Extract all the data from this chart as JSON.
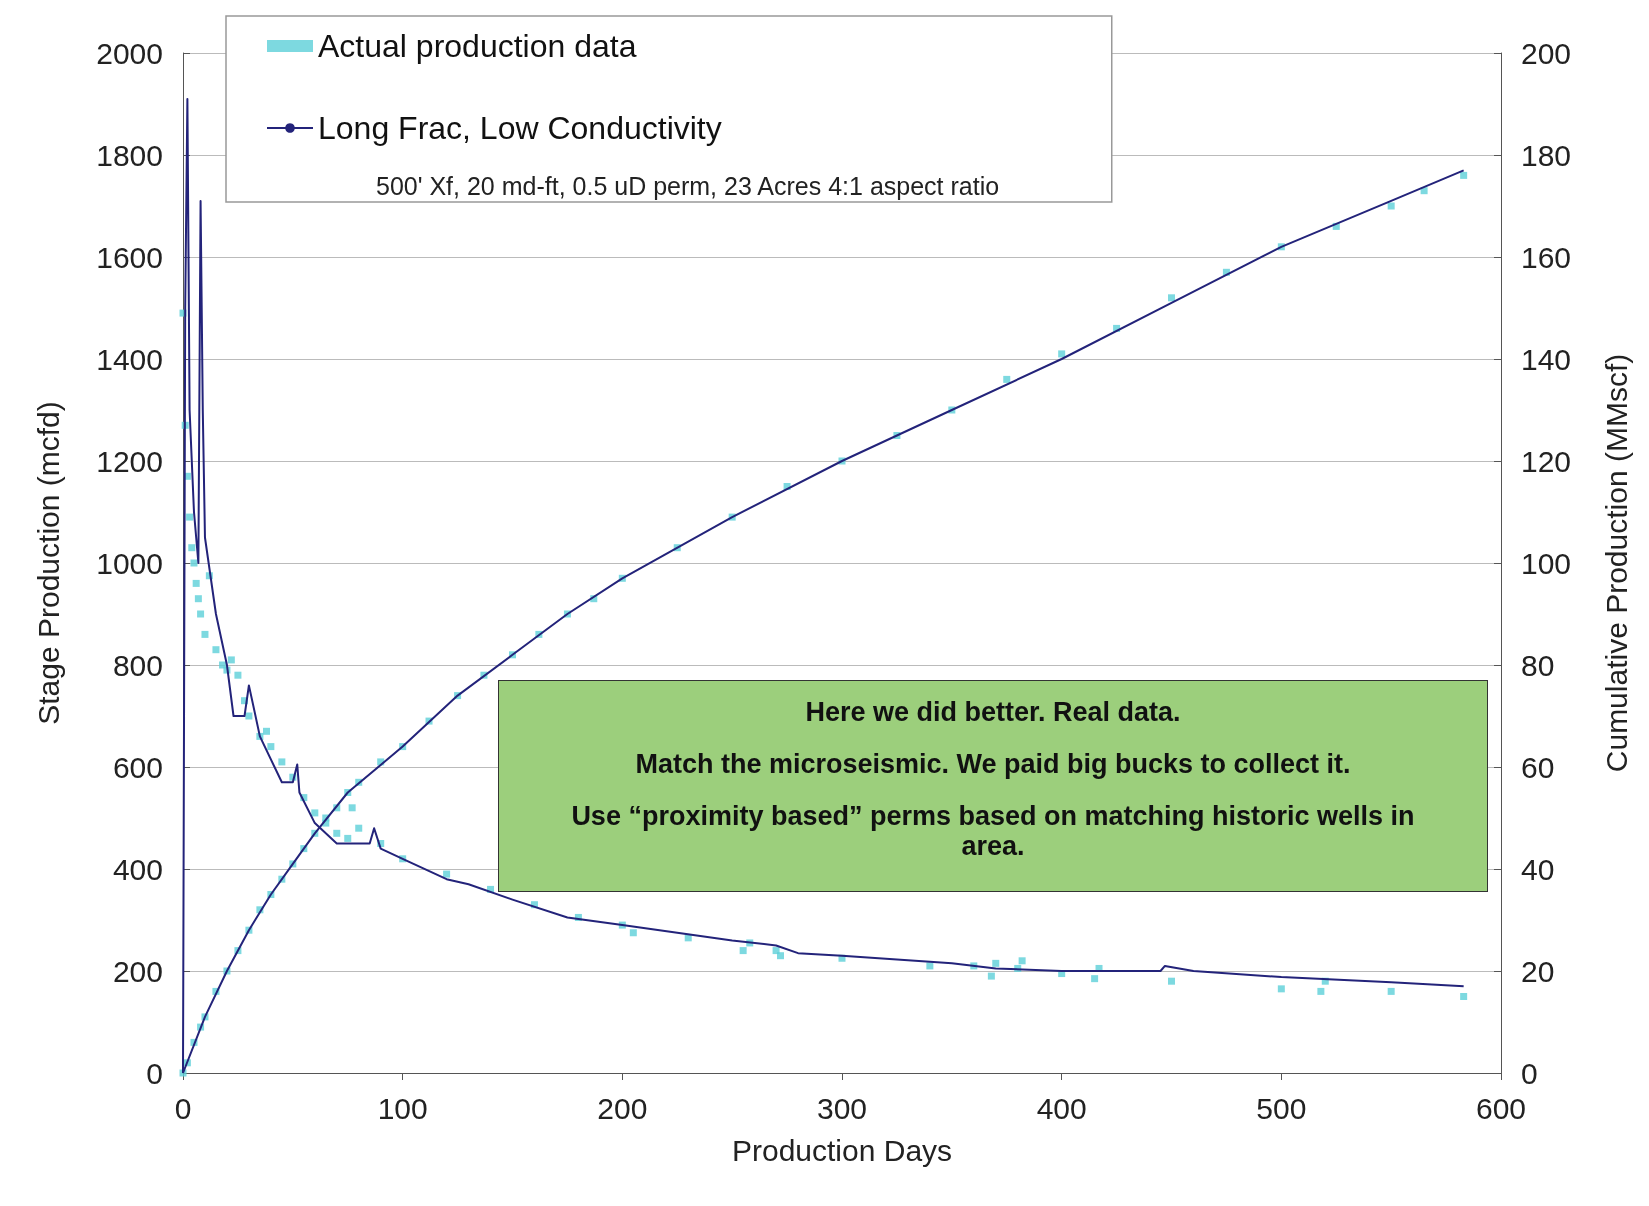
{
  "chart_data": {
    "type": "line",
    "xlabel": "Production Days",
    "ylabel": "Stage Production (mcfd)",
    "y2label": "Cumulative Production (MMscf)",
    "xlim": [
      0,
      600
    ],
    "xticks": [
      0,
      100,
      200,
      300,
      400,
      500,
      600
    ],
    "ylim": [
      0,
      2000
    ],
    "yticks": [
      0,
      200,
      400,
      600,
      800,
      1000,
      1200,
      1400,
      1600,
      1800,
      2000
    ],
    "y2lim": [
      0,
      200
    ],
    "y2ticks": [
      0,
      20,
      40,
      60,
      80,
      100,
      120,
      140,
      160,
      180,
      200
    ],
    "grid": "y",
    "legend": "top",
    "annotations": [
      "500' Xf, 20 md-ft, 0.5 uD perm, 23 Acres 4:1 aspect ratio",
      "Here we did better.  Real data.",
      "Match the microseismic.  We paid big bucks to collect it.",
      "Use “proximity based” perms based on matching historic wells in area."
    ],
    "series": [
      {
        "name": "Actual production data",
        "type": "scatter",
        "marker": "square",
        "color": "#5ccfd8",
        "x": [
          0,
          1,
          2,
          3,
          4,
          5,
          6,
          7,
          8,
          10,
          12,
          15,
          18,
          20,
          22,
          25,
          28,
          30,
          35,
          38,
          40,
          45,
          50,
          55,
          60,
          65,
          70,
          75,
          77,
          80,
          90,
          100,
          120,
          140,
          160,
          180,
          200,
          205,
          230,
          255,
          258,
          270,
          272,
          300,
          340,
          360,
          368,
          370,
          380,
          382,
          400,
          415,
          417,
          450,
          500,
          518,
          520,
          550,
          583
        ],
        "values": [
          1490,
          1270,
          1170,
          1090,
          1030,
          1000,
          960,
          930,
          900,
          860,
          975,
          830,
          800,
          790,
          810,
          780,
          730,
          700,
          660,
          670,
          640,
          610,
          580,
          540,
          510,
          490,
          470,
          460,
          520,
          480,
          450,
          420,
          390,
          360,
          330,
          305,
          290,
          275,
          265,
          240,
          255,
          240,
          230,
          225,
          210,
          210,
          190,
          215,
          205,
          220,
          195,
          185,
          205,
          180,
          165,
          160,
          180,
          160,
          150
        ]
      },
      {
        "name": "Long Frac, Low Conductivity",
        "color": "#23237a",
        "x": [
          0,
          1,
          2,
          3,
          5,
          7,
          8,
          9,
          10,
          15,
          20,
          23,
          28,
          30,
          35,
          45,
          50,
          52,
          53,
          60,
          70,
          85,
          87,
          90,
          100,
          120,
          130,
          150,
          175,
          200,
          250,
          270,
          280,
          300,
          350,
          370,
          400,
          445,
          447,
          460,
          500,
          550,
          583
        ],
        "values": [
          0,
          1500,
          1910,
          1300,
          1100,
          1000,
          1710,
          1300,
          1050,
          900,
          800,
          700,
          700,
          760,
          660,
          570,
          570,
          605,
          550,
          490,
          450,
          450,
          480,
          440,
          420,
          380,
          370,
          340,
          305,
          290,
          260,
          250,
          235,
          230,
          215,
          205,
          200,
          200,
          210,
          200,
          188,
          178,
          170
        ]
      },
      {
        "type": "scatter",
        "marker": "square",
        "axis": "y2",
        "color": "#5ccfd8",
        "x": [
          0,
          2,
          5,
          8,
          10,
          15,
          20,
          25,
          30,
          35,
          40,
          45,
          50,
          55,
          60,
          65,
          70,
          75,
          80,
          90,
          100,
          112,
          125,
          137,
          150,
          162,
          175,
          187,
          200,
          225,
          250,
          275,
          300,
          325,
          350,
          375,
          400,
          425,
          450,
          475,
          500,
          525,
          550,
          565,
          583
        ],
        "values": [
          0,
          2,
          6,
          9,
          11,
          16,
          20,
          24,
          28,
          32,
          35,
          38,
          41,
          44,
          47,
          50,
          52,
          55,
          57,
          61,
          64,
          69,
          74,
          78,
          82,
          86,
          90,
          93,
          97,
          103,
          109,
          115,
          120,
          125,
          130,
          136,
          141,
          146,
          152,
          157,
          162,
          166,
          170,
          173,
          176
        ]
      },
      {
        "axis": "y2",
        "color": "#23237a",
        "x": [
          0,
          10,
          20,
          30,
          40,
          50,
          60,
          75,
          100,
          125,
          150,
          175,
          200,
          250,
          300,
          350,
          400,
          450,
          500,
          550,
          583
        ],
        "values": [
          0,
          11,
          20,
          28,
          35,
          41,
          47,
          55,
          64,
          74,
          82,
          90,
          97,
          109,
          120,
          130,
          140,
          151,
          162,
          171,
          177
        ]
      }
    ]
  }
}
